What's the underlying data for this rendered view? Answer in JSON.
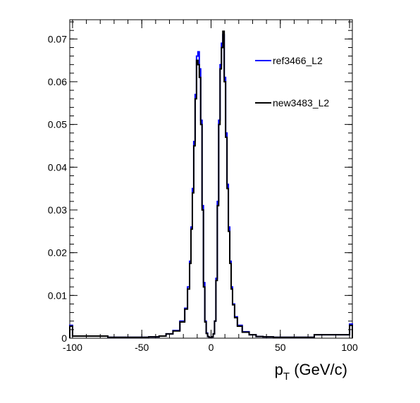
{
  "chart_data": {
    "type": "histogram",
    "title": "",
    "xlabel": "p",
    "xlabel_sub": "T",
    "xlabel_unit": " (GeV/c)",
    "ylabel": "",
    "xlim": [
      -102,
      102
    ],
    "ylim": [
      0,
      0.0745
    ],
    "x_ticks": [
      -100,
      -50,
      0,
      50,
      100
    ],
    "x_tick_labels": [
      "-100",
      "-50",
      "0",
      "50",
      "100"
    ],
    "y_ticks": [
      0,
      0.01,
      0.02,
      0.03,
      0.04,
      0.05,
      0.06,
      0.07
    ],
    "y_tick_labels": [
      "0",
      "0.01",
      "0.02",
      "0.03",
      "0.04",
      "0.05",
      "0.06",
      "0.07"
    ],
    "grid": false,
    "legend_position": "top-right",
    "series": [
      {
        "name": "ref3466_L2",
        "color": "#0000ff",
        "x": [
          -101,
          -99,
          -50,
          -40,
          -35,
          -30,
          -25,
          -20,
          -18,
          -16,
          -15,
          -14,
          -13,
          -12,
          -11,
          -10,
          -9,
          -8,
          -7,
          -6,
          -5,
          -4,
          -3,
          -2,
          -1,
          0,
          1,
          2,
          3,
          4,
          5,
          6,
          7,
          8,
          9,
          10,
          11,
          12,
          13,
          14,
          15,
          16,
          18,
          20,
          25,
          30,
          35,
          40,
          50,
          99,
          101
        ],
        "values": [
          0.003,
          0.0005,
          0.0002,
          0.0003,
          0.0005,
          0.001,
          0.0018,
          0.004,
          0.007,
          0.012,
          0.018,
          0.026,
          0.035,
          0.046,
          0.057,
          0.066,
          0.067,
          0.063,
          0.051,
          0.031,
          0.013,
          0.004,
          0.0012,
          0.0004,
          0.0002,
          0.0002,
          0.0003,
          0.001,
          0.004,
          0.014,
          0.032,
          0.051,
          0.064,
          0.069,
          0.071,
          0.061,
          0.048,
          0.036,
          0.026,
          0.018,
          0.012,
          0.008,
          0.005,
          0.003,
          0.0015,
          0.0008,
          0.0004,
          0.0003,
          0.0002,
          0.0008,
          0.0033
        ]
      },
      {
        "name": "new3483_L2",
        "color": "#000000",
        "x": [
          -101,
          -99,
          -50,
          -40,
          -35,
          -30,
          -25,
          -20,
          -18,
          -16,
          -15,
          -14,
          -13,
          -12,
          -11,
          -10,
          -9,
          -8,
          -7,
          -6,
          -5,
          -4,
          -3,
          -2,
          -1,
          0,
          1,
          2,
          3,
          4,
          5,
          6,
          7,
          8,
          9,
          10,
          11,
          12,
          13,
          14,
          15,
          16,
          18,
          20,
          25,
          30,
          35,
          40,
          50,
          99,
          101
        ],
        "values": [
          0.0028,
          0.0005,
          0.0002,
          0.0003,
          0.0005,
          0.001,
          0.0017,
          0.0038,
          0.0068,
          0.0115,
          0.0175,
          0.0255,
          0.034,
          0.045,
          0.056,
          0.065,
          0.064,
          0.061,
          0.05,
          0.03,
          0.012,
          0.0038,
          0.0011,
          0.0004,
          0.0002,
          0.0002,
          0.0003,
          0.001,
          0.004,
          0.0135,
          0.031,
          0.05,
          0.063,
          0.068,
          0.0718,
          0.06,
          0.047,
          0.035,
          0.025,
          0.0175,
          0.0115,
          0.0078,
          0.0048,
          0.0028,
          0.0014,
          0.0008,
          0.0004,
          0.0003,
          0.0002,
          0.0008,
          0.003
        ]
      }
    ]
  }
}
